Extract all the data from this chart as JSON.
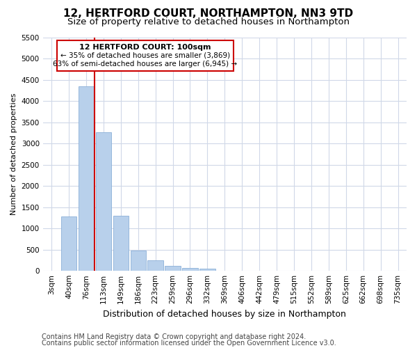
{
  "title": "12, HERTFORD COURT, NORTHAMPTON, NN3 9TD",
  "subtitle": "Size of property relative to detached houses in Northampton",
  "xlabel": "Distribution of detached houses by size in Northampton",
  "ylabel": "Number of detached properties",
  "categories": [
    "3sqm",
    "40sqm",
    "76sqm",
    "113sqm",
    "149sqm",
    "186sqm",
    "223sqm",
    "259sqm",
    "296sqm",
    "332sqm",
    "369sqm",
    "406sqm",
    "442sqm",
    "479sqm",
    "515sqm",
    "552sqm",
    "589sqm",
    "625sqm",
    "662sqm",
    "698sqm",
    "735sqm"
  ],
  "values": [
    0,
    1275,
    4350,
    3275,
    1300,
    475,
    250,
    115,
    75,
    55,
    0,
    0,
    0,
    0,
    0,
    0,
    0,
    0,
    0,
    0,
    0
  ],
  "bar_color": "#b8d0eb",
  "bar_edge_color": "#8ab0d8",
  "vline_x": 2.5,
  "vline_color": "#cc0000",
  "annotation_line1": "12 HERTFORD COURT: 100sqm",
  "annotation_line2": "← 35% of detached houses are smaller (3,869)",
  "annotation_line3": "63% of semi-detached houses are larger (6,945) →",
  "annotation_box_color": "#ffffff",
  "annotation_box_edge": "#cc0000",
  "ylim": [
    0,
    5500
  ],
  "yticks": [
    0,
    500,
    1000,
    1500,
    2000,
    2500,
    3000,
    3500,
    4000,
    4500,
    5000,
    5500
  ],
  "footer1": "Contains HM Land Registry data © Crown copyright and database right 2024.",
  "footer2": "Contains public sector information licensed under the Open Government Licence v3.0.",
  "bg_color": "#ffffff",
  "plot_bg_color": "#ffffff",
  "grid_color": "#d0d8e8",
  "title_fontsize": 11,
  "subtitle_fontsize": 9.5,
  "xlabel_fontsize": 9,
  "ylabel_fontsize": 8,
  "tick_fontsize": 7.5,
  "footer_fontsize": 7
}
